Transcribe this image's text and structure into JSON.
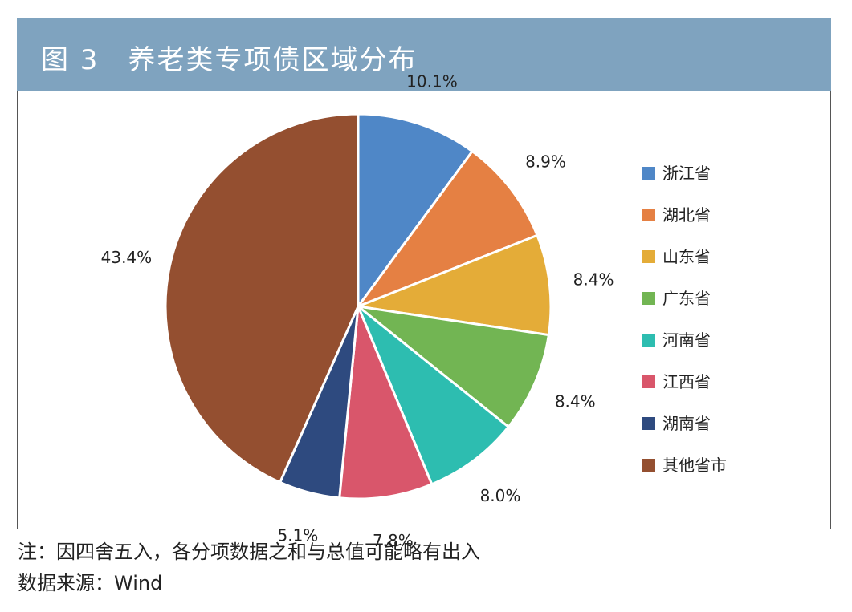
{
  "title": "图 3　养老类专项债区域分布",
  "chart_data": {
    "type": "pie",
    "title": "养老类专项债区域分布",
    "legend_position": "right",
    "slices": [
      {
        "label": "浙江省",
        "value": 10.1,
        "display": "10.1%",
        "color": "#4f87c7"
      },
      {
        "label": "湖北省",
        "value": 8.9,
        "display": "8.9%",
        "color": "#e58043"
      },
      {
        "label": "山东省",
        "value": 8.4,
        "display": "8.4%",
        "color": "#e4ac38"
      },
      {
        "label": "广东省",
        "value": 8.4,
        "display": "8.4%",
        "color": "#72b553"
      },
      {
        "label": "河南省",
        "value": 8.0,
        "display": "8.0%",
        "color": "#2dbdb0"
      },
      {
        "label": "江西省",
        "value": 7.8,
        "display": "7.8%",
        "color": "#d9566b"
      },
      {
        "label": "湖南省",
        "value": 5.1,
        "display": "5.1%",
        "color": "#2e4a7f"
      },
      {
        "label": "其他省市",
        "value": 43.4,
        "display": "43.4%",
        "color": "#944f30"
      }
    ]
  },
  "notes": {
    "rounding": "注：因四舍五入，各分项数据之和与总值可能略有出入",
    "source": "数据来源：Wind"
  }
}
